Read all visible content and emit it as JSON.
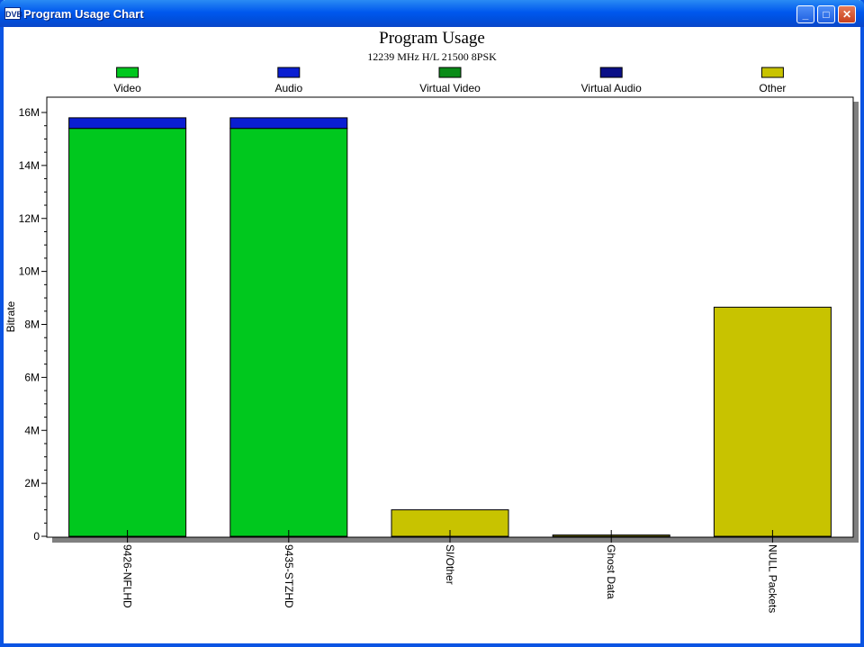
{
  "window": {
    "app_icon": "DVB",
    "title": "Program Usage Chart",
    "buttons": {
      "minimize": "_",
      "maximize": "□",
      "close": "✕"
    }
  },
  "colors": {
    "video": "#00c81e",
    "audio": "#0a1ed2",
    "virtual_video": "#0a8c18",
    "virtual_audio": "#0a0f87",
    "other": "#c8c300"
  },
  "chart_data": {
    "type": "bar",
    "stacked": true,
    "title": "Program Usage",
    "subtitle": "12239 MHz H/L 21500 8PSK",
    "xlabel": "",
    "ylabel": "Bitrate",
    "ylim": [
      0,
      16000000
    ],
    "yticks": [
      {
        "value": 0,
        "label": "0"
      },
      {
        "value": 2000000,
        "label": "2M"
      },
      {
        "value": 4000000,
        "label": "4M"
      },
      {
        "value": 6000000,
        "label": "6M"
      },
      {
        "value": 8000000,
        "label": "8M"
      },
      {
        "value": 10000000,
        "label": "10M"
      },
      {
        "value": 12000000,
        "label": "12M"
      },
      {
        "value": 14000000,
        "label": "14M"
      },
      {
        "value": 16000000,
        "label": "16M"
      }
    ],
    "legend_position": "top",
    "categories": [
      "9426-NFLHD",
      "9435-STZHD",
      "SI/Other",
      "Ghost Data",
      "NULL Packets"
    ],
    "series": [
      {
        "name": "Video",
        "color_key": "video",
        "values": [
          15400000,
          15400000,
          0,
          0,
          0
        ]
      },
      {
        "name": "Audio",
        "color_key": "audio",
        "values": [
          400000,
          400000,
          0,
          0,
          0
        ]
      },
      {
        "name": "Virtual Video",
        "color_key": "virtual_video",
        "values": [
          0,
          0,
          0,
          0,
          0
        ]
      },
      {
        "name": "Virtual Audio",
        "color_key": "virtual_audio",
        "values": [
          0,
          0,
          0,
          0,
          0
        ]
      },
      {
        "name": "Other",
        "color_key": "other",
        "values": [
          0,
          0,
          1000000,
          50000,
          8650000
        ]
      }
    ]
  }
}
